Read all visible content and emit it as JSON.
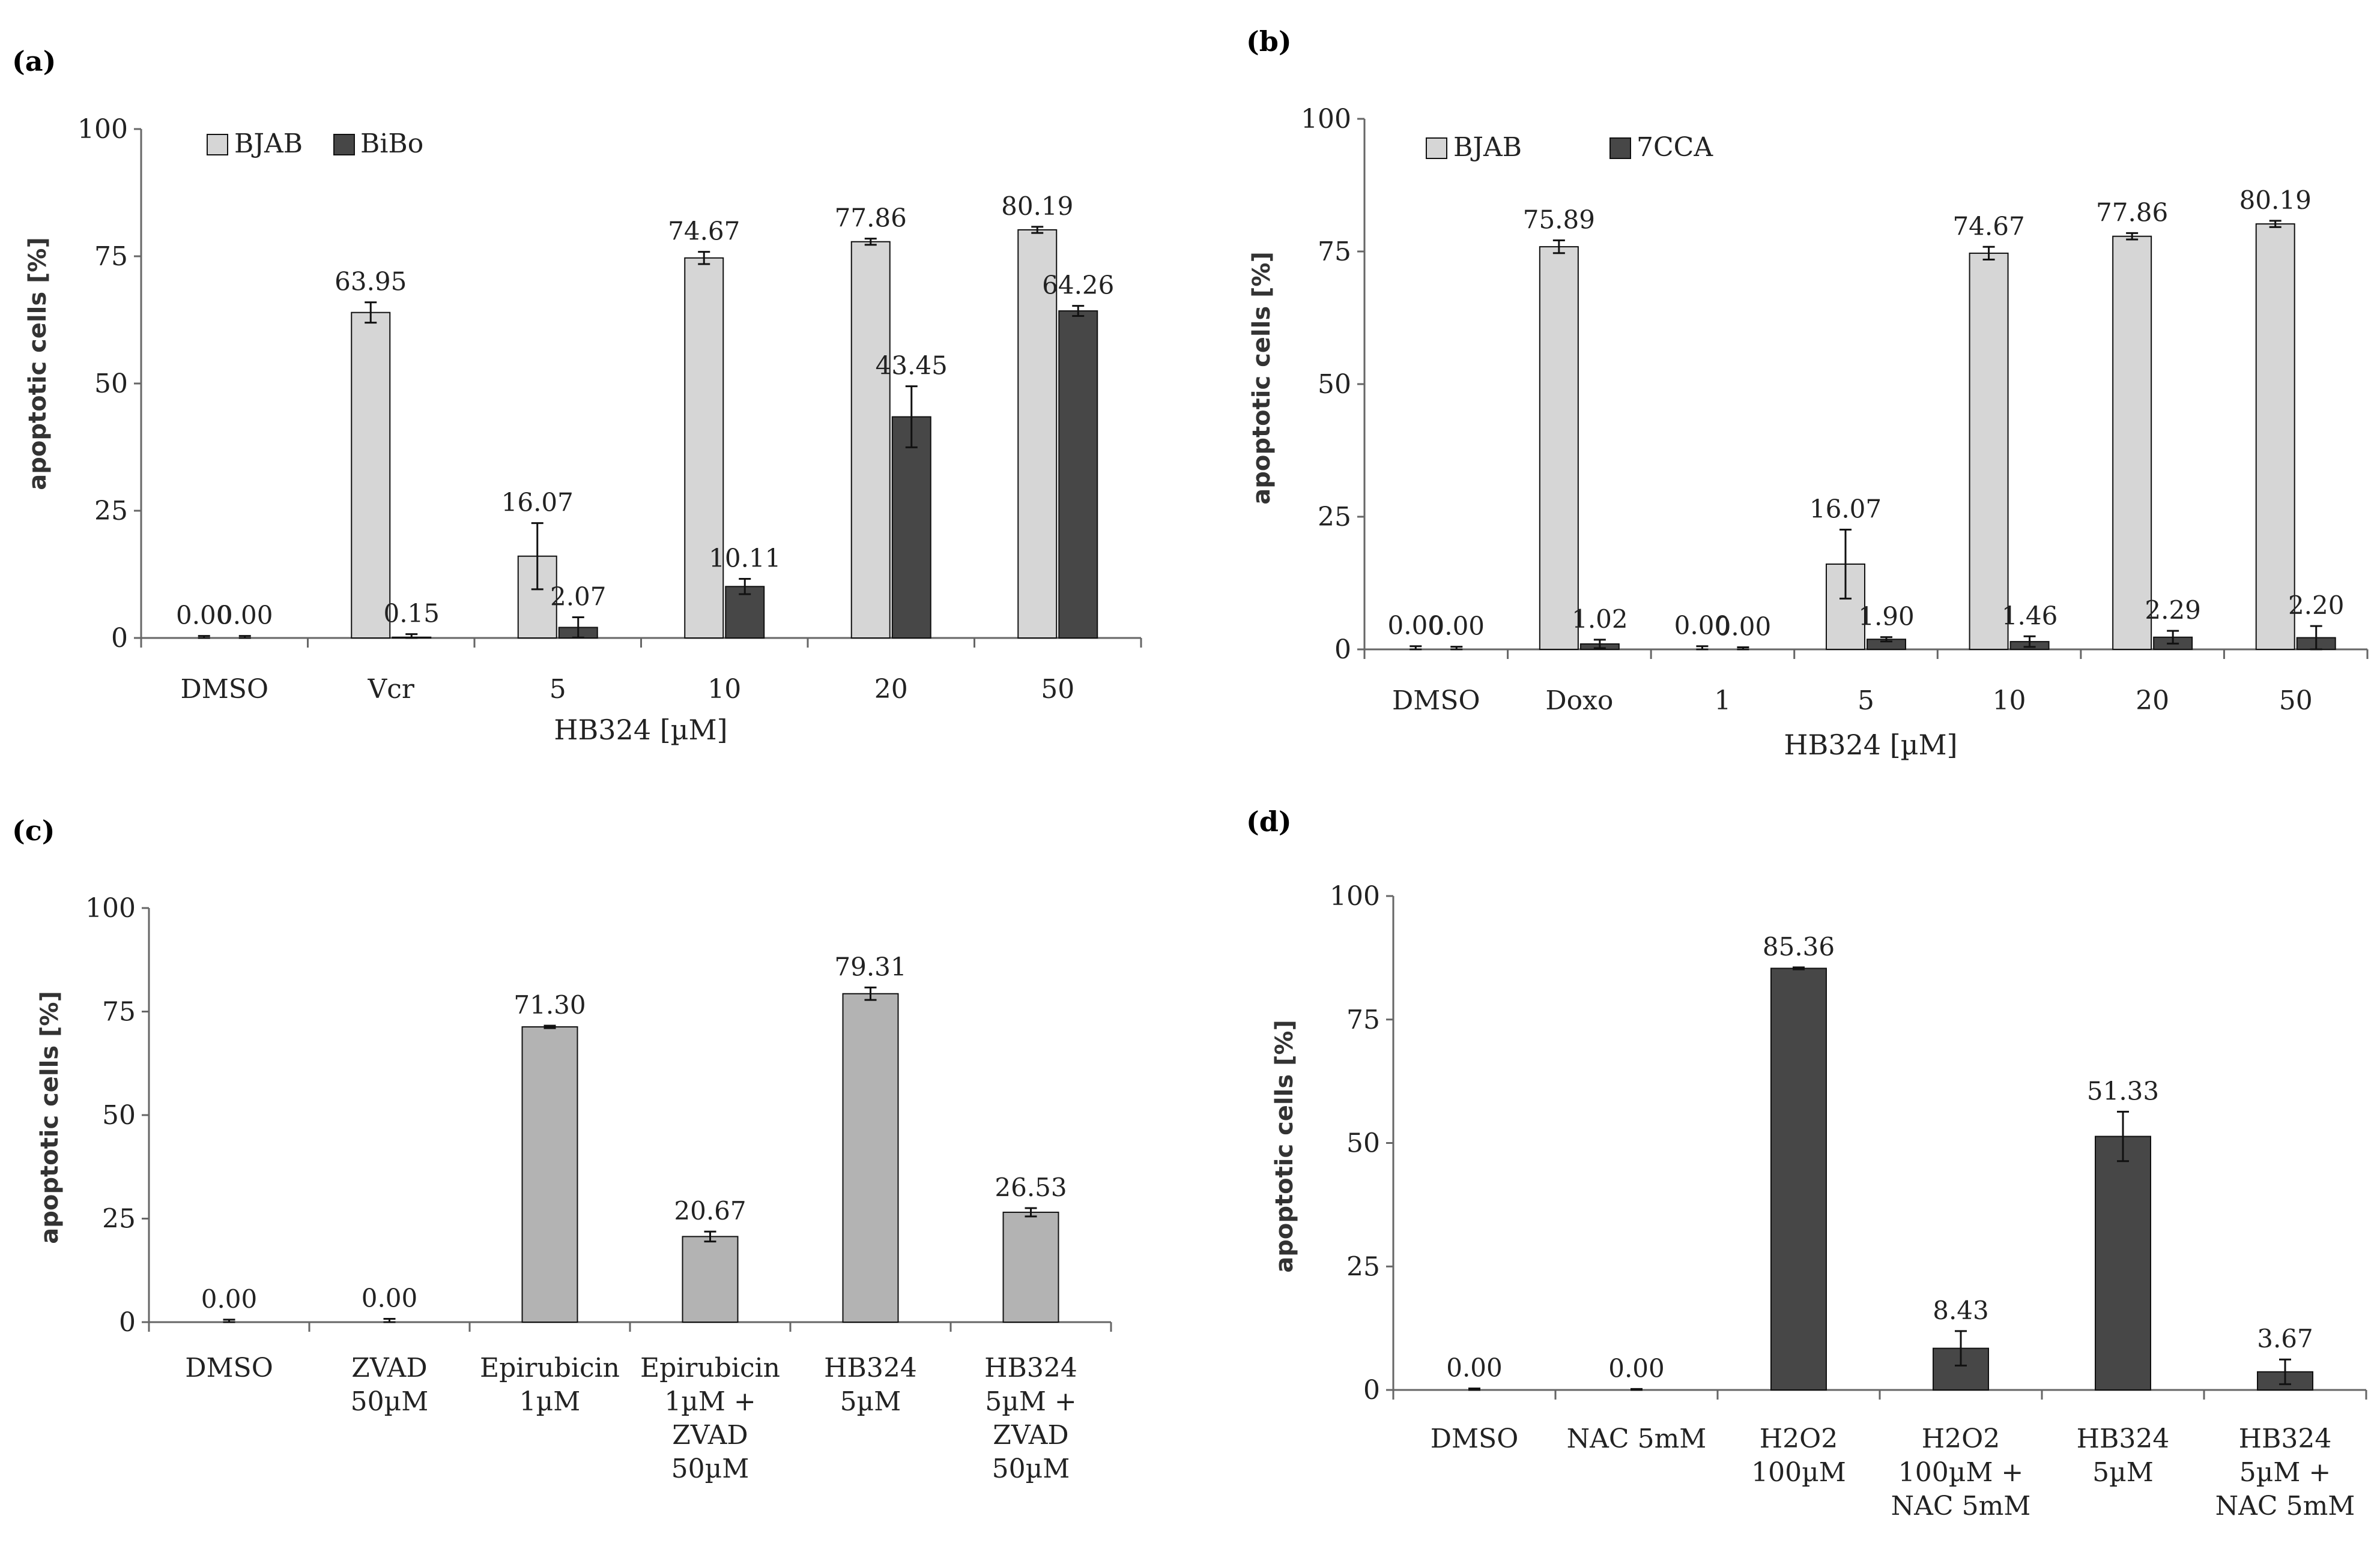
{
  "colors": {
    "light": "#d6d6d6",
    "dark": "#474747",
    "mid": "#b3b3b3",
    "axis": "#666666",
    "bar_stroke": "#111111"
  },
  "chart_data": [
    {
      "panel": "(a)",
      "type": "bar",
      "ylabel": "apoptotic cells [%]",
      "xlabel": "HB324 [µM]",
      "ylim": [
        0,
        100
      ],
      "yticks": [
        0,
        25,
        50,
        75,
        100
      ],
      "categories": [
        "DMSO",
        "Vcr",
        "5",
        "10",
        "20",
        "50"
      ],
      "legend": "top-left",
      "series": [
        {
          "name": "BJAB",
          "color": "light",
          "values": [
            0.0,
            63.95,
            16.07,
            74.67,
            77.86,
            80.19
          ],
          "errors": [
            0.4,
            2.0,
            6.5,
            1.2,
            0.6,
            0.6
          ],
          "labels": [
            "0.00",
            "63.95",
            "16.07",
            "74.67",
            "77.86",
            "80.19"
          ]
        },
        {
          "name": "BiBo",
          "color": "dark",
          "values": [
            0.0,
            0.15,
            2.07,
            10.11,
            43.45,
            64.26
          ],
          "errors": [
            0.4,
            0.6,
            2.0,
            1.5,
            6.0,
            1.0
          ],
          "labels": [
            "0.00",
            "0.15",
            "2.07",
            "10.11",
            "43.45",
            "64.26"
          ]
        }
      ]
    },
    {
      "panel": "(b)",
      "type": "bar",
      "ylabel": "apoptotic cells [%]",
      "xlabel": "HB324 [µM]",
      "ylim": [
        0,
        100
      ],
      "yticks": [
        0,
        25,
        50,
        75,
        100
      ],
      "categories": [
        "DMSO",
        "Doxo",
        "1",
        "5",
        "10",
        "20",
        "50"
      ],
      "legend": "top-left",
      "series": [
        {
          "name": "BJAB",
          "color": "light",
          "values": [
            0.0,
            75.89,
            0.0,
            16.07,
            74.67,
            77.86,
            80.19
          ],
          "errors": [
            0.6,
            1.2,
            0.6,
            6.5,
            1.2,
            0.6,
            0.6
          ],
          "labels": [
            "0.00",
            "75.89",
            "0.00",
            "16.07",
            "74.67",
            "77.86",
            "80.19"
          ]
        },
        {
          "name": "7CCA",
          "color": "dark",
          "values": [
            0.0,
            1.02,
            0.0,
            1.9,
            1.46,
            2.29,
            2.2
          ],
          "errors": [
            0.5,
            0.8,
            0.4,
            0.4,
            1.0,
            1.2,
            2.2
          ],
          "labels": [
            "0.00",
            "1.02",
            "0.00",
            "1.90",
            "1.46",
            "2.29",
            "2.20"
          ]
        }
      ]
    },
    {
      "panel": "(c)",
      "type": "bar",
      "ylabel": "apoptotic cells [%]",
      "ylim": [
        0,
        100
      ],
      "yticks": [
        0,
        25,
        50,
        75,
        100
      ],
      "categories": [
        [
          "DMSO"
        ],
        [
          "ZVAD",
          "50µM"
        ],
        [
          "Epirubicin",
          "1µM"
        ],
        [
          "Epirubicin",
          "1µM +",
          "ZVAD",
          "50µM"
        ],
        [
          "HB324",
          "5µM"
        ],
        [
          "HB324",
          "5µM +",
          "ZVAD",
          "50µM"
        ]
      ],
      "series": [
        {
          "name": "",
          "color": "mid",
          "values": [
            0.0,
            0.0,
            71.3,
            20.67,
            79.31,
            26.53
          ],
          "errors": [
            0.6,
            0.8,
            0.3,
            1.2,
            1.5,
            1.0
          ],
          "labels": [
            "0.00",
            "0.00",
            "71.30",
            "20.67",
            "79.31",
            "26.53"
          ]
        }
      ]
    },
    {
      "panel": "(d)",
      "type": "bar",
      "ylabel": "apoptotic cells [%]",
      "ylim": [
        0,
        100
      ],
      "yticks": [
        0,
        25,
        50,
        75,
        100
      ],
      "categories": [
        [
          "DMSO"
        ],
        [
          "NAC 5mM"
        ],
        [
          "H2O2",
          "100µM"
        ],
        [
          "H2O2",
          "100µM +",
          "NAC 5mM"
        ],
        [
          "HB324",
          "5µM"
        ],
        [
          "HB324",
          "5µM +",
          "NAC 5mM"
        ]
      ],
      "series": [
        {
          "name": "",
          "color": "dark",
          "values": [
            0.0,
            0.0,
            85.36,
            8.43,
            51.33,
            3.67
          ],
          "errors": [
            0.3,
            0.2,
            0.2,
            3.5,
            5.0,
            2.5
          ],
          "labels": [
            "0.00",
            "0.00",
            "85.36",
            "8.43",
            "51.33",
            "3.67"
          ]
        }
      ]
    }
  ]
}
